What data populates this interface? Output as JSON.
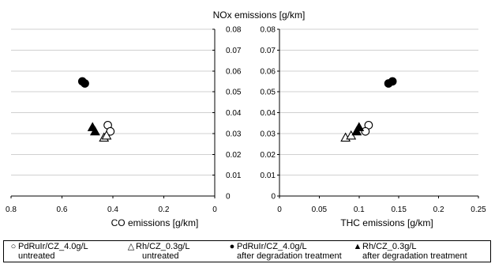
{
  "top_title": "NOx emissions [g/km]",
  "chart_data": [
    {
      "type": "scatter",
      "xlabel": "CO emissions [g/km]",
      "ylabel": "NOx emissions [g/km]",
      "xlim": [
        0,
        0.8
      ],
      "x_reversed": true,
      "ylim": [
        0,
        0.08
      ],
      "x_ticks": [
        "0.8",
        "0.6",
        "0.4",
        "0.2",
        "0"
      ],
      "y_ticks": [
        "0",
        "0.01",
        "0.02",
        "0.03",
        "0.04",
        "0.05",
        "0.06",
        "0.07",
        "0.08"
      ],
      "grid": "horizontal",
      "series": [
        {
          "legend_index": 0,
          "marker": "circle-open",
          "points": [
            [
              0.42,
              0.034
            ],
            [
              0.41,
              0.031
            ]
          ]
        },
        {
          "legend_index": 1,
          "marker": "triangle-open",
          "points": [
            [
              0.435,
              0.028
            ],
            [
              0.425,
              0.029
            ]
          ]
        },
        {
          "legend_index": 2,
          "marker": "circle-filled",
          "points": [
            [
              0.52,
              0.055
            ],
            [
              0.51,
              0.054
            ]
          ]
        },
        {
          "legend_index": 3,
          "marker": "triangle-filled",
          "points": [
            [
              0.48,
              0.033
            ],
            [
              0.47,
              0.031
            ]
          ]
        }
      ]
    },
    {
      "type": "scatter",
      "xlabel": "THC emissions [g/km]",
      "ylabel": "",
      "xlim": [
        0,
        0.25
      ],
      "ylim": [
        0,
        0.08
      ],
      "x_ticks": [
        "0",
        "0.05",
        "0.1",
        "0.15",
        "0.2",
        "0.25"
      ],
      "y_ticks": [
        "0",
        "0.01",
        "0.02",
        "0.03",
        "0.04",
        "0.05",
        "0.06",
        "0.07",
        "0.08"
      ],
      "grid": "horizontal",
      "series": [
        {
          "legend_index": 0,
          "marker": "circle-open",
          "points": [
            [
              0.112,
              0.034
            ],
            [
              0.108,
              0.031
            ]
          ]
        },
        {
          "legend_index": 1,
          "marker": "triangle-open",
          "points": [
            [
              0.083,
              0.028
            ],
            [
              0.09,
              0.029
            ]
          ]
        },
        {
          "legend_index": 2,
          "marker": "circle-filled",
          "points": [
            [
              0.142,
              0.055
            ],
            [
              0.137,
              0.054
            ]
          ]
        },
        {
          "legend_index": 3,
          "marker": "triangle-filled",
          "points": [
            [
              0.097,
              0.031
            ],
            [
              0.1,
              0.033
            ]
          ]
        }
      ]
    }
  ],
  "legend": {
    "placement": "bottom",
    "items": [
      {
        "symbol": "○",
        "line1": "PdRuIr/CZ_4.0g/L",
        "line2": "untreated"
      },
      {
        "symbol": "△",
        "line1": "Rh/CZ_0.3g/L",
        "line2": "untreated"
      },
      {
        "symbol": "●",
        "line1": "PdRuIr/CZ_4.0g/L",
        "line2": "after degradation treatment"
      },
      {
        "symbol": "▲",
        "line1": "Rh/CZ_0.3g/L",
        "line2": "after degradation treatment"
      }
    ]
  }
}
